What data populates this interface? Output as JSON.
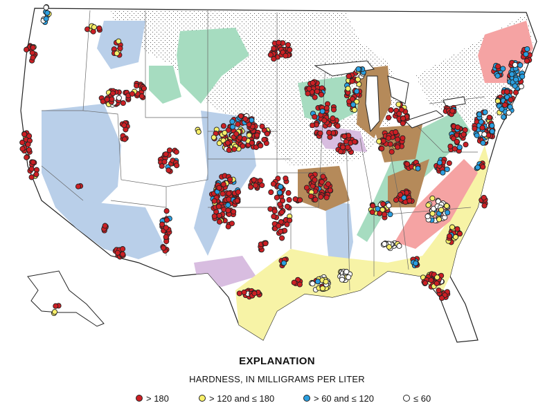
{
  "explanation": {
    "title": "EXPLANATION",
    "subtitle": "HARDNESS, IN MILLIGRAMS PER LITER",
    "legend": [
      {
        "label": "> 180",
        "color": "#cc1f24"
      },
      {
        "label": "> 120 and ≤ 180",
        "color": "#f7ef6a"
      },
      {
        "label": "> 60 and ≤ 120",
        "color": "#2b9fe0"
      },
      {
        "label": "≤ 60",
        "color": "#ffffff"
      }
    ]
  },
  "colors": {
    "background": "#ffffff",
    "glacial_stipple": "#f2f2f2",
    "green_area": "#a6dcc0",
    "blue_area": "#b9cfe9",
    "brown_area": "#b58a5a",
    "purple_area": "#d8bde0",
    "yellow_area": "#f7f3a6",
    "pink_area": "#f5a3a3",
    "state_lines": "#555555",
    "outline": "#222222"
  }
}
